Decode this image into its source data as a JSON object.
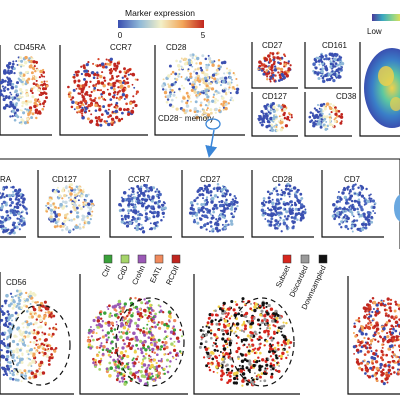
{
  "colorbar": {
    "title": "Marker expression",
    "min_label": "0",
    "max_label": "5",
    "stops": [
      "#3a4fb0",
      "#8fb8d8",
      "#f3f0c8",
      "#f2a65a",
      "#c0261f"
    ]
  },
  "density_legend": {
    "low_label": "Low"
  },
  "row1": {
    "panels": [
      "CD45RA",
      "CCR7",
      "CD28",
      "CD27",
      "CD161",
      "CD127",
      "CD38"
    ],
    "annotation": "CD28⁻ memory"
  },
  "row2": {
    "panels": [
      "RA",
      "CD127",
      "CCR7",
      "CD27",
      "CD28",
      "CD7"
    ]
  },
  "row3": {
    "panel1_label": "CD56",
    "group_legend": [
      {
        "label": "Ctrl",
        "color": "#3aa13a"
      },
      {
        "label": "CdD",
        "color": "#a5d46a"
      },
      {
        "label": "Crohn",
        "color": "#9b59b6"
      },
      {
        "label": "EATL",
        "color": "#f08a5d"
      },
      {
        "label": "RCDII",
        "color": "#c0261f"
      }
    ],
    "subset_legend": [
      {
        "label": "Subset",
        "color": "#d7261e"
      },
      {
        "label": "Discarded",
        "color": "#9a9a9a"
      },
      {
        "label": "Downsampled",
        "color": "#111111"
      }
    ]
  },
  "colors": {
    "high": "#c0261f",
    "mid": "#f2a65a",
    "low": "#3a4fb0",
    "arrow": "#3a86d8"
  }
}
